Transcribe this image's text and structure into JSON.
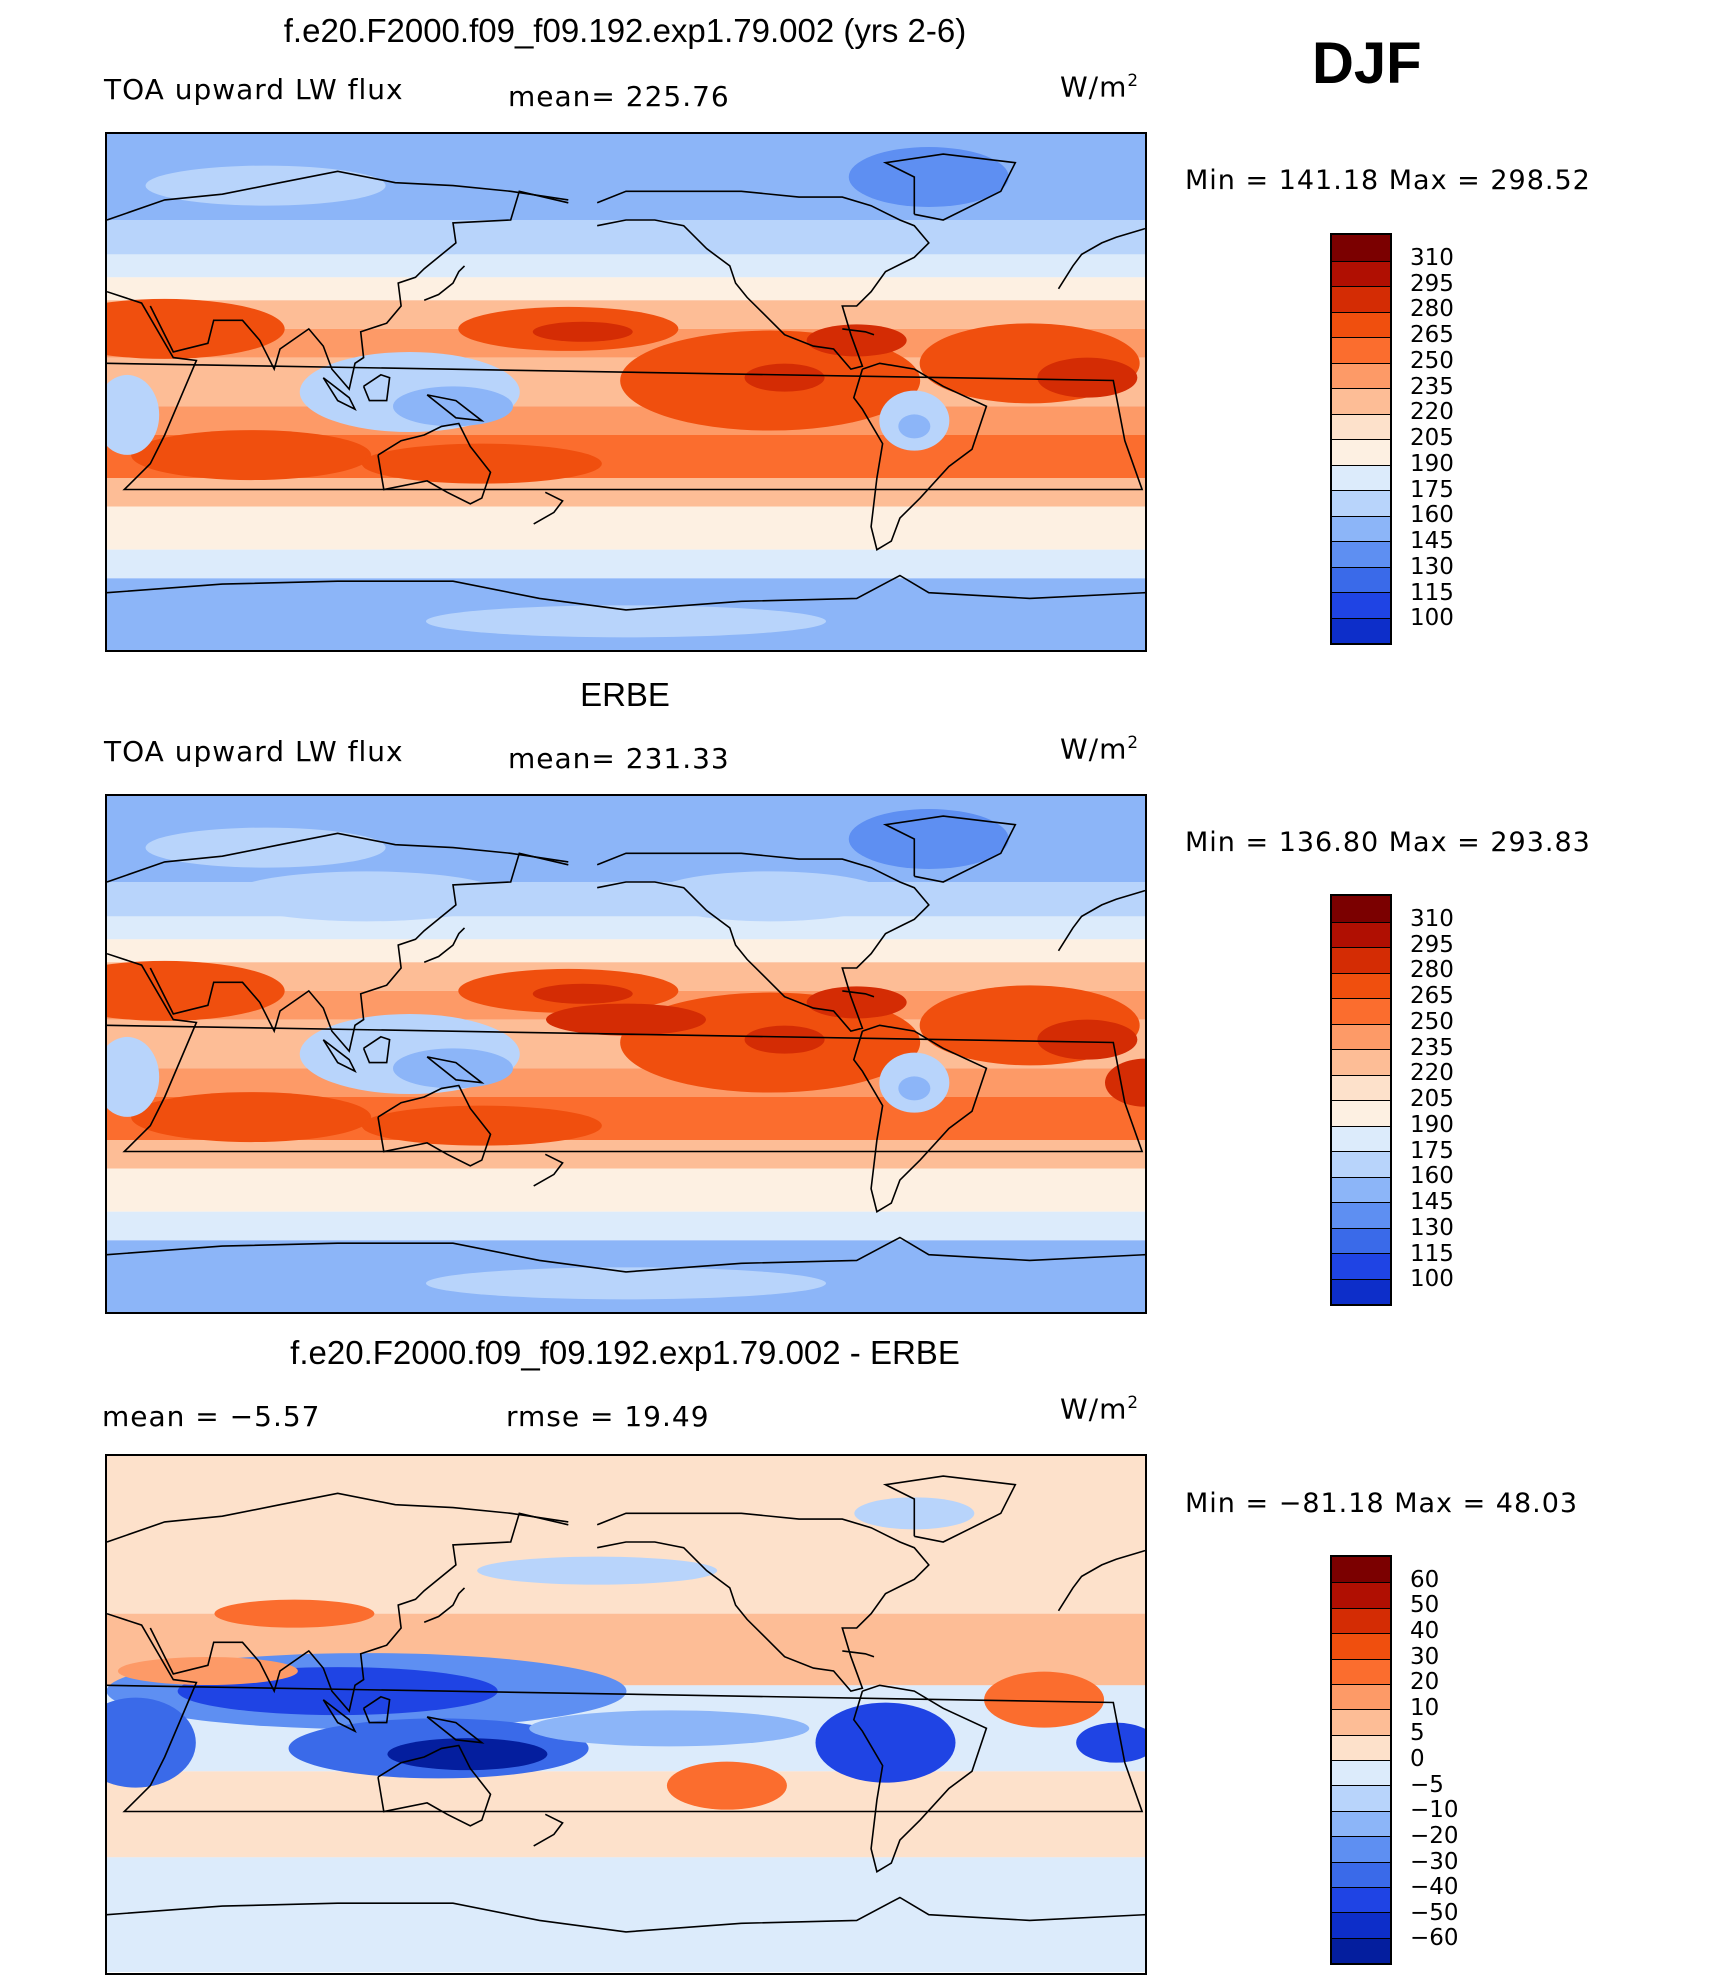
{
  "season": "DJF",
  "colors": {
    "abs_palette": [
      "#7b0000",
      "#b00f02",
      "#d42c04",
      "#f04f0e",
      "#fb6d2e",
      "#fd9a67",
      "#fdbd96",
      "#fde1cb",
      "#fdf0e2",
      "#dcebfb",
      "#b8d4fb",
      "#8cb5f8",
      "#5e8ff2",
      "#3a6ae9",
      "#1f44e4",
      "#0d2ec9",
      "#041e9e",
      "#00106c"
    ],
    "diff_palette": [
      "#7b0000",
      "#b00f02",
      "#d42c04",
      "#f04f0e",
      "#fb6d2e",
      "#fd9a67",
      "#fdbd96",
      "#fde1cb",
      "#dcebfb",
      "#b8d4fb",
      "#8cb5f8",
      "#5e8ff2",
      "#3a6ae9",
      "#1f44e4",
      "#0d2ec9",
      "#041e9e",
      "#00106c"
    ]
  },
  "chart_data": [
    {
      "type": "heatmap",
      "title": "f.e20.F2000.f09_f09.192.exp1.79.002 (yrs 2-6)",
      "left_label": "TOA upward LW flux",
      "center_label": "mean=  225.76",
      "units": "W/m",
      "units_sup": "2",
      "minmax": "Min  =  141.18  Max  =  298.52",
      "min": 141.18,
      "max": 298.52,
      "mean": 225.76,
      "colorbar_labels": [
        "310",
        "295",
        "280",
        "265",
        "250",
        "235",
        "220",
        "205",
        "190",
        "175",
        "160",
        "145",
        "130",
        "115",
        "100"
      ]
    },
    {
      "type": "heatmap",
      "title": "ERBE",
      "left_label": "TOA upward LW flux",
      "center_label": "mean=  231.33",
      "units": "W/m",
      "units_sup": "2",
      "minmax": "Min  =  136.80  Max  =  293.83",
      "min": 136.8,
      "max": 293.83,
      "mean": 231.33,
      "colorbar_labels": [
        "310",
        "295",
        "280",
        "265",
        "250",
        "235",
        "220",
        "205",
        "190",
        "175",
        "160",
        "145",
        "130",
        "115",
        "100"
      ]
    },
    {
      "type": "heatmap",
      "title": "f.e20.F2000.f09_f09.192.exp1.79.002 - ERBE",
      "left_label": "mean  =    −5.57",
      "center_label": "rmse  =    19.49",
      "units": "W/m",
      "units_sup": "2",
      "minmax": "Min  =  −81.18  Max  =    48.03",
      "min": -81.18,
      "max": 48.03,
      "mean": -5.57,
      "rmse": 19.49,
      "colorbar_labels": [
        "60",
        "50",
        "40",
        "30",
        "20",
        "10",
        "5",
        "0",
        "−5",
        "−10",
        "−20",
        "−30",
        "−40",
        "−50",
        "−60"
      ]
    }
  ]
}
